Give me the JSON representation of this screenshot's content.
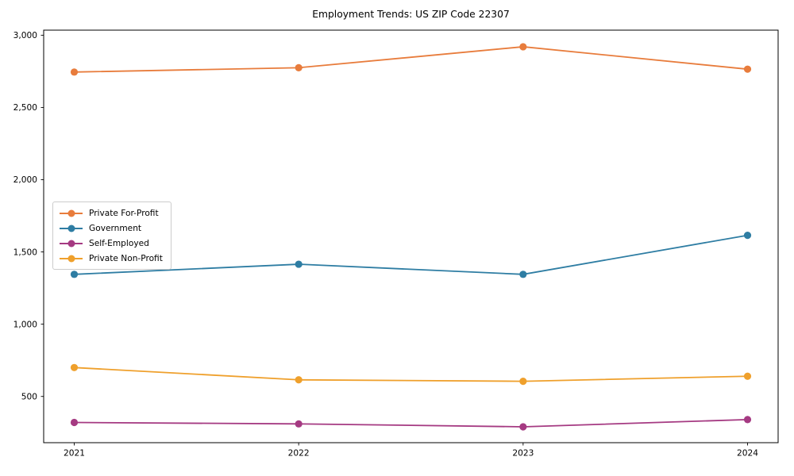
{
  "figure": {
    "background": "#ffffff"
  },
  "chart_data": {
    "type": "line",
    "title": "Employment Trends: US ZIP Code 22307",
    "xlabel": "",
    "ylabel": "",
    "x": [
      2021,
      2022,
      2023,
      2024
    ],
    "x_tick_labels": [
      "2021",
      "2022",
      "2023",
      "2024"
    ],
    "series": [
      {
        "name": "Private For-Profit",
        "color": "#e87c3c",
        "values": [
          2745,
          2775,
          2920,
          2765
        ]
      },
      {
        "name": "Government",
        "color": "#2e7da3",
        "values": [
          1345,
          1415,
          1345,
          1615
        ]
      },
      {
        "name": "Self-Employed",
        "color": "#a53a82",
        "values": [
          320,
          310,
          290,
          340
        ]
      },
      {
        "name": "Private Non-Profit",
        "color": "#efa02c",
        "values": [
          700,
          615,
          605,
          640
        ]
      }
    ],
    "ylim": [
      180,
      3035
    ],
    "yticks": [
      500,
      1000,
      1500,
      2000,
      2500,
      3000
    ],
    "ytick_labels": [
      "500",
      "1,000",
      "1,500",
      "2,000",
      "2,500",
      "3,000"
    ],
    "grid": false,
    "legend_position": "center-left",
    "marker": "circle",
    "axis_color": "#000000"
  }
}
